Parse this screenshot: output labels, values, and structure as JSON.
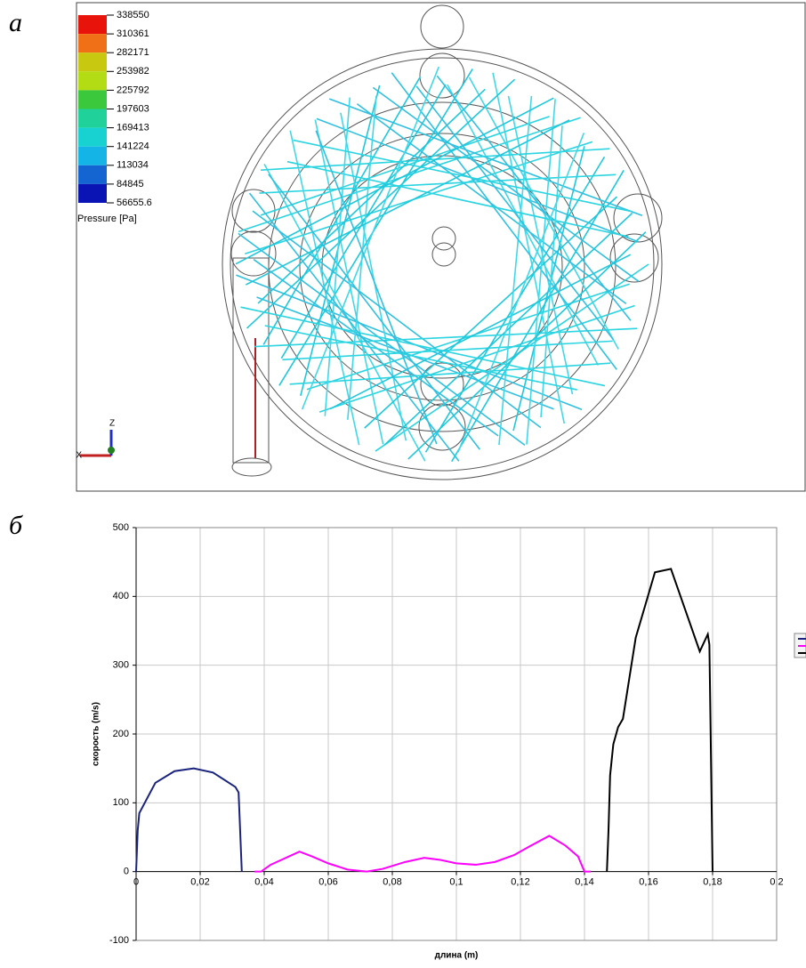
{
  "panel_labels": [
    "а",
    "б"
  ],
  "render": {
    "legend_title": "Pressure [Pa]",
    "legend_values": [
      338550,
      310361,
      282171,
      253982,
      225792,
      197603,
      169413,
      141224,
      113034,
      84845,
      56655.6
    ],
    "legend_colors": [
      "#e8140c",
      "#f07018",
      "#c8c810",
      "#b4dc14",
      "#3cc83c",
      "#20d29a",
      "#18d2d2",
      "#14b4e6",
      "#1464d2",
      "#0a14b4"
    ],
    "axis_z": "Z",
    "axis_x": "X"
  },
  "chart_data": {
    "type": "line",
    "ylabel": "скорость (m/s)",
    "xlabel": "длина (m)",
    "xlim": [
      0,
      0.2
    ],
    "ylim": [
      -100,
      500
    ],
    "xticks": [
      0,
      {
        "value": 0.02,
        "label": "0,02"
      },
      {
        "value": 0.04,
        "label": "0,04"
      },
      {
        "value": 0.06,
        "label": "0,06"
      },
      {
        "value": 0.08,
        "label": "0,08"
      },
      {
        "value": 0.1,
        "label": "0,1"
      },
      {
        "value": 0.12,
        "label": "0,12"
      },
      {
        "value": 0.14,
        "label": "0,14"
      },
      {
        "value": 0.16,
        "label": "0,16"
      },
      {
        "value": 0.18,
        "label": "0,18"
      },
      {
        "value": 0.2,
        "label": "0,2"
      }
    ],
    "yticks": [
      -100,
      0,
      100,
      200,
      300,
      400,
      500
    ],
    "grid": true,
    "series": [
      {
        "color": "#1a237e",
        "x": [
          0,
          0.0005,
          0.001,
          0.006,
          0.012,
          0.018,
          0.024,
          0.031,
          0.032,
          0.033
        ],
        "values": [
          0,
          60,
          85,
          129,
          146,
          150,
          144,
          123,
          115,
          0
        ]
      },
      {
        "color": "#ff00ff",
        "x": [
          0.037,
          0.039,
          0.042,
          0.051,
          0.055,
          0.06,
          0.066,
          0.072,
          0.077,
          0.084,
          0.09,
          0.095,
          0.1,
          0.106,
          0.112,
          0.118,
          0.123,
          0.129,
          0.134,
          0.138,
          0.14,
          0.142
        ],
        "values": [
          0,
          0,
          10,
          29,
          22,
          12,
          3,
          0,
          4,
          14,
          20,
          17,
          12,
          10,
          14,
          24,
          37,
          52,
          38,
          22,
          0,
          0
        ]
      },
      {
        "color": "#000000",
        "x": [
          0.147,
          0.1475,
          0.148,
          0.149,
          0.1505,
          0.152,
          0.156,
          0.162,
          0.167,
          0.176,
          0.1785,
          0.179,
          0.18
        ],
        "values": [
          0,
          60,
          140,
          185,
          210,
          222,
          340,
          435,
          440,
          320,
          345,
          330,
          0
        ]
      }
    ]
  }
}
